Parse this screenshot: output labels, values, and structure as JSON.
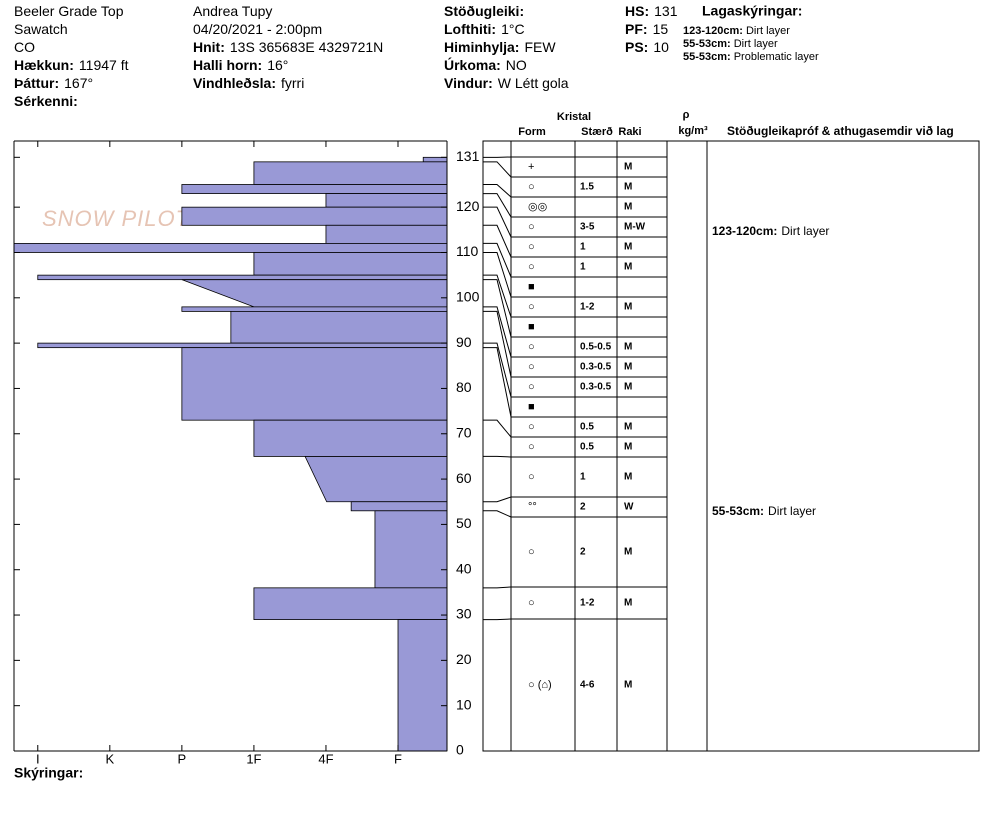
{
  "header": {
    "columns": [
      [
        {
          "value": "Beeler Grade Top"
        },
        {
          "value": "Sawatch"
        },
        {
          "value": "CO"
        },
        {
          "label": "Hækkun:",
          "value": "11947 ft"
        },
        {
          "label": "Þáttur:",
          "value": "167°"
        },
        {
          "label": "Sérkenni:"
        }
      ],
      [
        {
          "value": "Andrea Tupy"
        },
        {
          "value": "04/20/2021 - 2:00pm"
        },
        {
          "label": "Hnit:",
          "value": "13S 365683E 4329721N"
        },
        {
          "label": "Halli horn:",
          "value": "16°"
        },
        {
          "label": "Vindhleðsla:",
          "value": "fyrri"
        }
      ],
      [
        {
          "label": "Stöðugleiki:"
        },
        {
          "label": "Lofthiti:",
          "value": "1°C"
        },
        {
          "label": "Himinhylja:",
          "value": "FEW"
        },
        {
          "label": "Úrkoma:",
          "value": "NO"
        },
        {
          "label": "Vindur:",
          "value": "W Létt gola"
        }
      ],
      [
        {
          "label": "HS:",
          "value": "131"
        },
        {
          "label": "PF:",
          "value": "15"
        },
        {
          "label": "PS:",
          "value": "10"
        }
      ]
    ],
    "legend": {
      "title": "Lagaskýringar:",
      "items": [
        {
          "label": "123-120cm:",
          "value": "Dirt layer"
        },
        {
          "label": "55-53cm:",
          "value": "Dirt layer"
        },
        {
          "label": "55-53cm:",
          "value": "Problematic layer"
        }
      ]
    }
  },
  "watermark": "SNOW PILOT",
  "chart_data": {
    "type": "profile",
    "color": "#9999d6",
    "ylim": [
      0,
      134.6
    ],
    "yticks": [
      0,
      10,
      20,
      30,
      40,
      50,
      60,
      70,
      80,
      90,
      100,
      110,
      120,
      131
    ],
    "xlim": [
      6.33,
      0.32
    ],
    "xticks": [
      {
        "value": 6,
        "label": "I"
      },
      {
        "value": 5,
        "label": "K"
      },
      {
        "value": 4,
        "label": "P"
      },
      {
        "value": 3,
        "label": "1F"
      },
      {
        "value": 2,
        "label": "4F"
      },
      {
        "value": 1,
        "label": "F"
      }
    ],
    "layers": [
      {
        "top": 131,
        "bottom": 130,
        "hardness": 0.65,
        "form": "+",
        "moisture": "M"
      },
      {
        "top": 130,
        "bottom": 125,
        "hardness": 3,
        "form": "○",
        "size": "1.5",
        "moisture": "M"
      },
      {
        "top": 125,
        "bottom": 123,
        "hardness": 4,
        "form": "◎◎",
        "moisture": "M"
      },
      {
        "top": 123,
        "bottom": 120,
        "hardness": 2,
        "form": "○",
        "size": "3-5",
        "moisture": "M-W",
        "comment": {
          "label": "123-120cm:",
          "text": "Dirt layer"
        }
      },
      {
        "top": 120,
        "bottom": 116,
        "hardness": 4,
        "form": "○",
        "size": "1",
        "moisture": "M"
      },
      {
        "top": 116,
        "bottom": 112,
        "hardness": 2,
        "form": "○",
        "size": "1",
        "moisture": "M"
      },
      {
        "top": 112,
        "bottom": 110,
        "hardness": 6.33,
        "form": "■"
      },
      {
        "top": 110,
        "bottom": 105,
        "hardness": 3,
        "form": "○",
        "size": "1-2",
        "moisture": "M"
      },
      {
        "top": 105,
        "bottom": 104,
        "hardness": 6,
        "form": "■"
      },
      {
        "top": 104,
        "bottom": 98,
        "hardness_top": 4,
        "hardness_bottom": 3,
        "form": "○",
        "size": "0.5-0.5",
        "moisture": "M"
      },
      {
        "top": 98,
        "bottom": 97,
        "hardness": 4,
        "form": "○",
        "size": "0.3-0.5",
        "moisture": "M"
      },
      {
        "top": 97,
        "bottom": 90,
        "hardness": 3.32,
        "form": "○",
        "size": "0.3-0.5",
        "moisture": "M"
      },
      {
        "top": 90,
        "bottom": 89,
        "hardness": 6,
        "form": "■"
      },
      {
        "top": 89,
        "bottom": 73,
        "hardness": 4,
        "form": "○",
        "size": "0.5",
        "moisture": "M"
      },
      {
        "top": 73,
        "bottom": 65,
        "hardness": 3,
        "form": "○",
        "size": "0.5",
        "moisture": "M"
      },
      {
        "top": 65,
        "bottom": 55,
        "hardness_top": 2.29,
        "hardness_bottom": 1.99,
        "form": "○",
        "size": "1",
        "moisture": "M"
      },
      {
        "top": 55,
        "bottom": 53,
        "hardness": 1.65,
        "form": "°°",
        "size": "2",
        "moisture": "W",
        "comment": {
          "label": "55-53cm:",
          "text": "Dirt layer"
        }
      },
      {
        "top": 53,
        "bottom": 36,
        "hardness": 1.32,
        "form": "○",
        "size": "2",
        "moisture": "M"
      },
      {
        "top": 36,
        "bottom": 29,
        "hardness": 3,
        "form": "○",
        "size": "1-2",
        "moisture": "M"
      },
      {
        "top": 29,
        "bottom": 0,
        "hardness": 1,
        "form": "○ (⌂)",
        "size": "4-6",
        "moisture": "M"
      }
    ]
  },
  "table": {
    "headers": {
      "crystal": "Kristal",
      "form": "Form",
      "size": "Stærð",
      "moisture": "Raki",
      "density_symbol": "ρ",
      "density_unit": "kg/m³",
      "comments": "Stöðugleikapróf & athugasemdir við lag"
    }
  },
  "footer": "Skýringar:"
}
